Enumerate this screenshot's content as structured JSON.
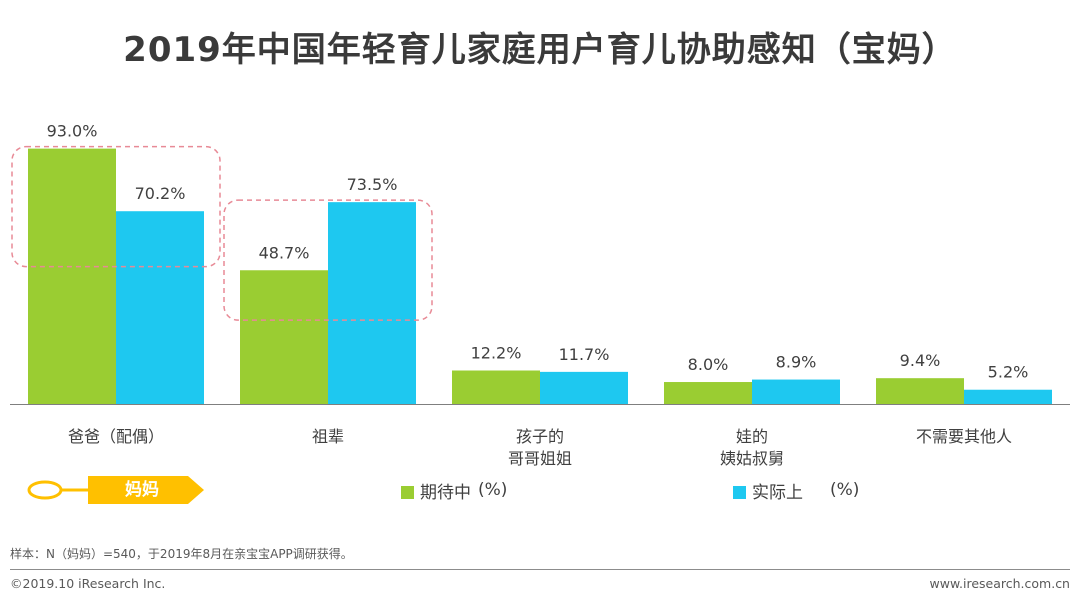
{
  "title": "2019年中国年轻育儿家庭用户育儿协助感知（宝妈）",
  "chart_data": {
    "type": "bar",
    "categories": [
      [
        "爸爸（配偶）"
      ],
      [
        "祖辈"
      ],
      [
        "孩子的",
        "哥哥姐姐"
      ],
      [
        "娃的",
        "姨姑叔舅"
      ],
      [
        "不需要其他人"
      ]
    ],
    "series": [
      {
        "name": "期待中",
        "values": [
          93.0,
          48.7,
          12.2,
          8.0,
          9.4
        ],
        "color": "#9acd32"
      },
      {
        "name": "实际上",
        "values": [
          70.2,
          73.5,
          11.7,
          8.9,
          5.2
        ],
        "color": "#1ec8f0"
      }
    ],
    "value_labels": [
      [
        "93.0%",
        "48.7%",
        "12.2%",
        "8.0%",
        "9.4%"
      ],
      [
        "70.2%",
        "73.5%",
        "11.7%",
        "8.9%",
        "5.2%"
      ]
    ],
    "unit": "(%)",
    "ylim": [
      0,
      100
    ],
    "highlighted_groups": [
      0,
      1
    ],
    "highlight_color": "#e88a96",
    "axis_color": "#7f7f7f"
  },
  "segment_tag": {
    "label": "妈妈",
    "color": "#ffc000"
  },
  "note": "样本：N（妈妈）=540，于2019年8月在亲宝宝APP调研获得。",
  "copyright": "©2019.10 iResearch Inc.",
  "website": "www.iresearch.com.cn"
}
